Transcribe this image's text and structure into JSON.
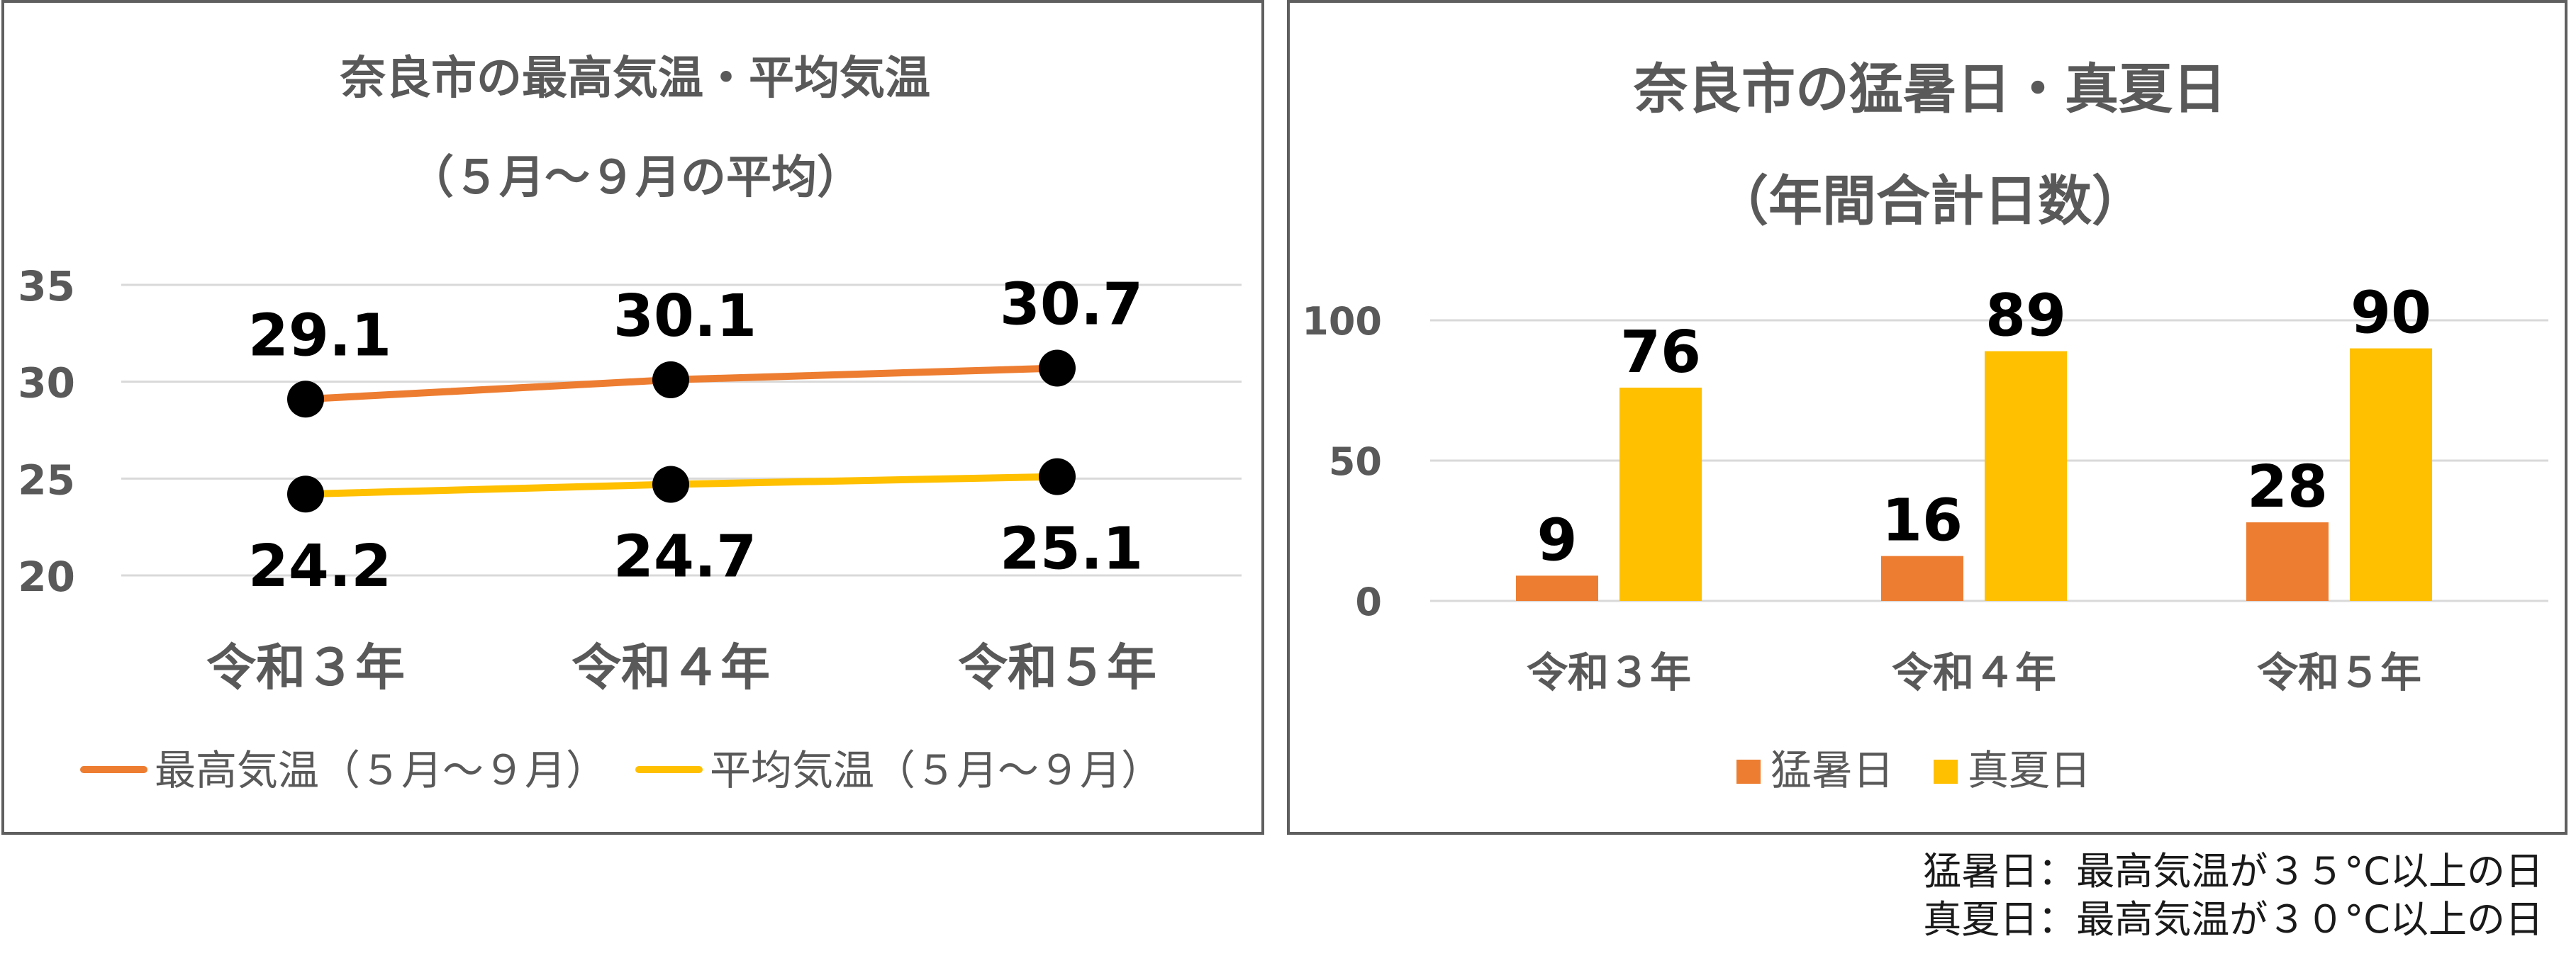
{
  "colors": {
    "orange": "#ED7D31",
    "gold": "#FFC000",
    "marker": "#000000",
    "grid": "#d9d9d9",
    "text": "#595959",
    "label": "#000000"
  },
  "chart_data": [
    {
      "type": "line",
      "title": "奈良市の最高気温・平均気温",
      "subtitle": "（５月～９月の平均）",
      "categories": [
        "令和３年",
        "令和４年",
        "令和５年"
      ],
      "series": [
        {
          "name": "最高気温（５月～９月）",
          "color": "#ED7D31",
          "values": [
            29.1,
            30.1,
            30.7
          ],
          "labels": [
            "29.1",
            "30.1",
            "30.7"
          ]
        },
        {
          "name": "平均気温（５月～９月）",
          "color": "#FFC000",
          "values": [
            24.2,
            24.7,
            25.1
          ],
          "labels": [
            "24.2",
            "24.7",
            "25.1"
          ]
        }
      ],
      "yticks": [
        "20",
        "25",
        "30",
        "35"
      ],
      "ylim": [
        20,
        35
      ],
      "grid": true,
      "legend": "bottom"
    },
    {
      "type": "bar",
      "title": "奈良市の猛暑日・真夏日",
      "subtitle": "（年間合計日数）",
      "categories": [
        "令和３年",
        "令和４年",
        "令和５年"
      ],
      "series": [
        {
          "name": "猛暑日",
          "color": "#ED7D31",
          "values": [
            9,
            16,
            28
          ],
          "labels": [
            "9",
            "16",
            "28"
          ]
        },
        {
          "name": "真夏日",
          "color": "#FFC000",
          "values": [
            76,
            89,
            90
          ],
          "labels": [
            "76",
            "89",
            "90"
          ]
        }
      ],
      "yticks": [
        "0",
        "50",
        "100"
      ],
      "ylim": [
        0,
        100
      ],
      "grid": true,
      "legend": "bottom"
    }
  ],
  "footnotes": [
    "猛暑日：最高気温が３５°C以上の日",
    "真夏日：最高気温が３０°C以上の日"
  ]
}
